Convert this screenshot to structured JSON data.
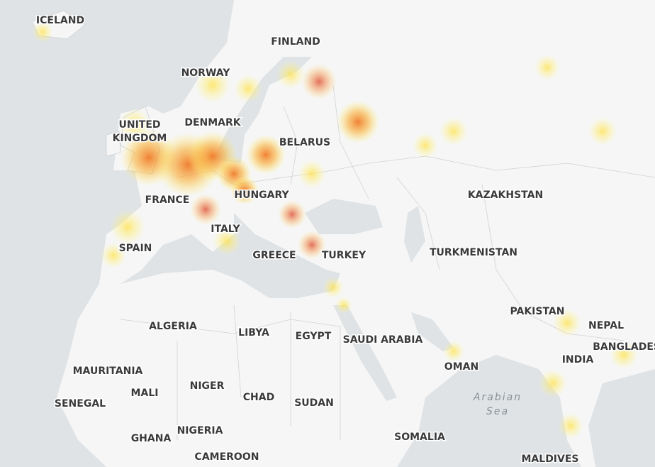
{
  "map": {
    "country_labels": [
      "ICELAND",
      "FINLAND",
      "NORWAY",
      "DENMARK",
      [
        "UNITED",
        "KINGDOM"
      ],
      "BELARUS",
      "FRANCE",
      "HUNGARY",
      "KAZAKHSTAN",
      "ITALY",
      "SPAIN",
      "GREECE",
      "TURKEY",
      "TURKMENISTAN",
      "PAKISTAN",
      "NEPAL",
      "BANGLADESH",
      "ALGERIA",
      "LIBYA",
      "EGYPT",
      "SAUDI ARABIA",
      "INDIA",
      "OMAN",
      "MAURITANIA",
      "MALI",
      "NIGER",
      "CHAD",
      "SUDAN",
      "SENEGAL",
      "GHANA",
      "NIGERIA",
      "SOMALIA",
      "CAMEROON",
      "MALDIVES"
    ],
    "water_labels": [
      [
        "Arabian",
        "Sea"
      ]
    ]
  }
}
